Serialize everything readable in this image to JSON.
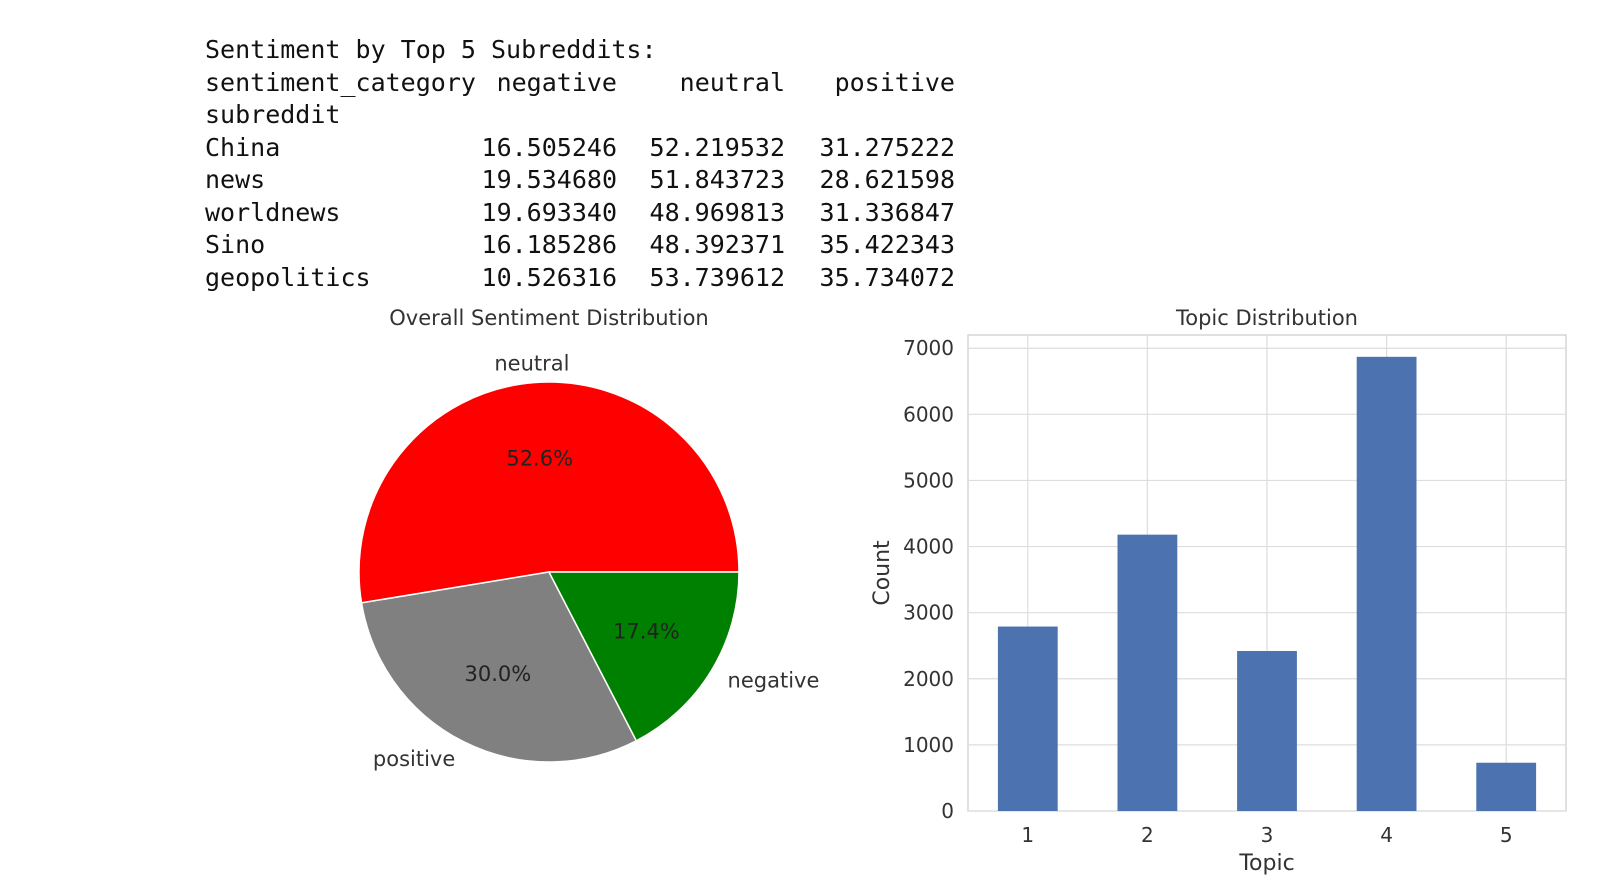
{
  "table": {
    "title": "Sentiment by Top 5 Subreddits:",
    "header_label": "sentiment_category",
    "columns": [
      "negative",
      "neutral",
      "positive"
    ],
    "index_name": "subreddit",
    "rows": [
      {
        "name": "China",
        "values": [
          "16.505246",
          "52.219532",
          "31.275222"
        ]
      },
      {
        "name": "news",
        "values": [
          "19.534680",
          "51.843723",
          "28.621598"
        ]
      },
      {
        "name": "worldnews",
        "values": [
          "19.693340",
          "48.969813",
          "31.336847"
        ]
      },
      {
        "name": "Sino",
        "values": [
          "16.185286",
          "48.392371",
          "35.422343"
        ]
      },
      {
        "name": "geopolitics",
        "values": [
          "10.526316",
          "53.739612",
          "35.734072"
        ]
      }
    ]
  },
  "chart_data": [
    {
      "type": "pie",
      "title": "Overall Sentiment Distribution",
      "labels": [
        "neutral",
        "positive",
        "negative"
      ],
      "values": [
        52.6,
        30.0,
        17.4
      ],
      "value_labels": [
        "52.6%",
        "30.0%",
        "17.4%"
      ],
      "colors": [
        "#ff0000",
        "#808080",
        "#008000"
      ]
    },
    {
      "type": "bar",
      "title": "Topic Distribution",
      "categories": [
        "1",
        "2",
        "3",
        "4",
        "5"
      ],
      "values": [
        2790,
        4180,
        2420,
        6870,
        730
      ],
      "xlabel": "Topic",
      "ylabel": "Count",
      "ylim": [
        0,
        7200
      ],
      "yticks": [
        "0",
        "1000",
        "2000",
        "3000",
        "4000",
        "5000",
        "6000",
        "7000"
      ],
      "grid": true,
      "bar_color": "#4c72b0"
    }
  ]
}
